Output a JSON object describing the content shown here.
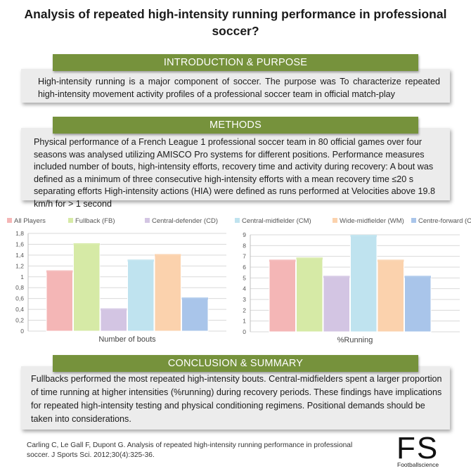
{
  "title": "Analysis of repeated high-intensity running performance in professional soccer?",
  "introduction": {
    "heading": "INTRODUCTION & PURPOSE",
    "text": "High-intensity running is a major component of soccer. The purpose was To characterize repeated high-intensity movement activity profiles of a professional soccer team in official match-play"
  },
  "methods": {
    "heading": "METHODS",
    "text": "Physical performance of a French League 1 professional soccer team in 80 official games over four seasons was analysed utilizing AMISCO Pro systems for different positions. Performance measures included number of bouts, high-intensity efforts, recovery time and activity during recovery: A bout was defined as a minimum of three consecutive high-intensity efforts with a mean recovery time ≤20 s separating efforts High-intensity actions (HIA) were defined as runs performed at Velocities above 19.8 km/h for > 1 second"
  },
  "legend": [
    {
      "label": "All Players",
      "color": "#f4b6b6"
    },
    {
      "label": "Fullback (FB)",
      "color": "#d6eaa6"
    },
    {
      "label": "Central-defender (CD)",
      "color": "#d3c5e3"
    },
    {
      "label": "Central-midfielder (CM)",
      "color": "#bfe3ef"
    },
    {
      "label": "Wide-midfielder (WM)",
      "color": "#fbd2ad"
    },
    {
      "label": "Centre-forward (CF)",
      "color": "#a9c5ea"
    }
  ],
  "chart_data": [
    {
      "type": "bar",
      "xlabel": "Number of bouts",
      "ylim": [
        0,
        1.8
      ],
      "yticks": [
        "0",
        "0,2",
        "0,4",
        "0,6",
        "0,8",
        "1",
        "1,2",
        "1,4",
        "1,6",
        "1,8"
      ],
      "series": [
        {
          "name": "All Players",
          "values": [
            1.1
          ]
        },
        {
          "name": "Fullback (FB)",
          "values": [
            1.6
          ]
        },
        {
          "name": "Central-defender (CD)",
          "values": [
            0.4
          ]
        },
        {
          "name": "Central-midfielder (CM)",
          "values": [
            1.3
          ]
        },
        {
          "name": "Wide-midfielder (WM)",
          "values": [
            1.4
          ]
        },
        {
          "name": "Centre-forward (CF)",
          "values": [
            0.6
          ]
        }
      ]
    },
    {
      "type": "bar",
      "xlabel": "%Running",
      "ylim": [
        0,
        9
      ],
      "yticks": [
        "0",
        "1",
        "2",
        "3",
        "4",
        "5",
        "6",
        "7",
        "8",
        "9"
      ],
      "series": [
        {
          "name": "All Players",
          "values": [
            6.6
          ]
        },
        {
          "name": "Fullback (FB)",
          "values": [
            6.8
          ]
        },
        {
          "name": "Central-defender (CD)",
          "values": [
            5.1
          ]
        },
        {
          "name": "Central-midfielder (CM)",
          "values": [
            8.9
          ]
        },
        {
          "name": "Wide-midfielder (WM)",
          "values": [
            6.6
          ]
        },
        {
          "name": "Centre-forward (CF)",
          "values": [
            5.1
          ]
        }
      ]
    }
  ],
  "conclusion": {
    "heading": "CONCLUSION & SUMMARY",
    "text": "Fullbacks performed the most repeated high-intensity bouts. Central-midfielders spent a larger proportion of time running at higher intensities (%running) during recovery periods. These findings have implications for repeated high-intensity testing and physical conditioning regimens. Positional demands should be taken into considerations."
  },
  "reference": "Carling C, Le Gall F, Dupont G. Analysis of repeated high-intensity running performance in professional soccer. J Sports Sci. 2012;30(4):325-36.",
  "logo": {
    "mark": "FS",
    "text": "Footballscience"
  }
}
